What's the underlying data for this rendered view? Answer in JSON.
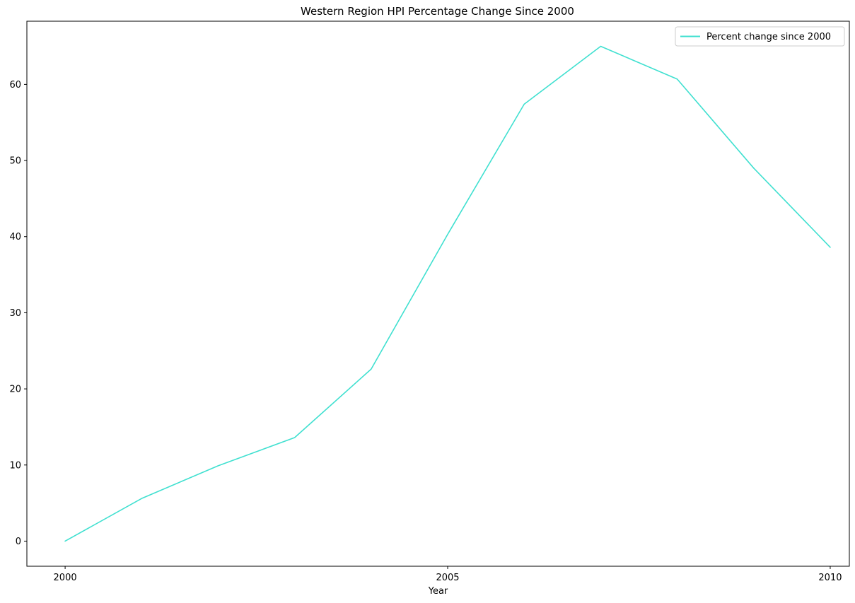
{
  "chart_data": {
    "type": "line",
    "title": "Western Region HPI Percentage Change Since 2000",
    "xlabel": "Year",
    "ylabel": "",
    "x": [
      2000,
      2001,
      2002,
      2003,
      2004,
      2005,
      2006,
      2007,
      2008,
      2009,
      2010
    ],
    "xlim": [
      1999.5,
      2010.25
    ],
    "ylim": [
      -3.3,
      68.3
    ],
    "xticks": [
      2000,
      2005,
      2010
    ],
    "xtick_labels": [
      "2000",
      "2005",
      "2010"
    ],
    "yticks": [
      0,
      10,
      20,
      30,
      40,
      50,
      60
    ],
    "ytick_labels": [
      "0",
      "10",
      "20",
      "30",
      "40",
      "50",
      "60"
    ],
    "grid": false,
    "legend_position": "top-right",
    "series": [
      {
        "name": "Percent change since 2000",
        "color": "#40e0d0",
        "values": [
          0,
          5.6,
          9.9,
          13.6,
          22.6,
          40.3,
          57.4,
          65.0,
          60.7,
          49.0,
          38.6
        ]
      }
    ]
  }
}
